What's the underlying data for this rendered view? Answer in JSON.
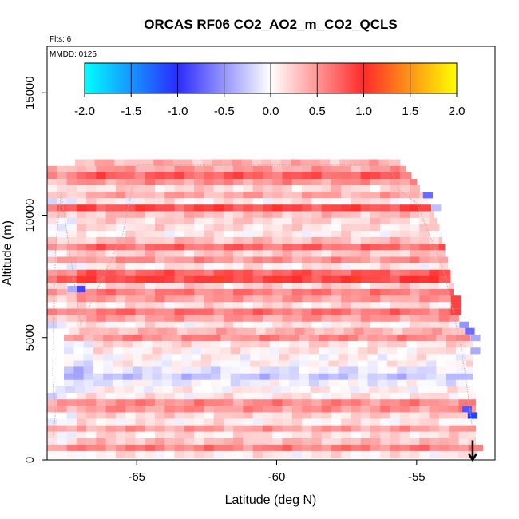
{
  "chart_data": {
    "type": "heatmap",
    "title": "ORCAS RF06 CO2_AO2_m_CO2_QCLS",
    "corner_text": "Flts: 6",
    "inset_label": "MMDD: 0125",
    "xlabel": "Latitude (deg N)",
    "ylabel": "Altitude (m)",
    "xlim": [
      -68.2,
      -52.2
    ],
    "ylim": [
      0,
      16900
    ],
    "x_ticks": [
      -65,
      -60,
      -55
    ],
    "x_tick_labels": [
      "-65",
      "-60",
      "-55"
    ],
    "y_ticks": [
      0,
      5000,
      10000,
      15000
    ],
    "y_tick_labels": [
      "0",
      "5000",
      "10000",
      "15000"
    ],
    "colorbar": {
      "range": [
        -2.0,
        2.0
      ],
      "ticks": [
        -2.0,
        -1.5,
        -1.0,
        -0.5,
        0.0,
        0.5,
        1.0,
        1.5,
        2.0
      ],
      "tick_labels": [
        "-2.0",
        "-1.5",
        "-1.0",
        "-0.5",
        "0.0",
        "0.5",
        "1.0",
        "1.5",
        "2.0"
      ],
      "color_stops": [
        {
          "value": -2.0,
          "color": "#00ffff"
        },
        {
          "value": -1.0,
          "color": "#2b2bff"
        },
        {
          "value": 0.0,
          "color": "#ffffff"
        },
        {
          "value": 1.0,
          "color": "#ff2b2b"
        },
        {
          "value": 2.0,
          "color": "#ffff00"
        }
      ]
    },
    "cell_width_deg": 0.35,
    "rows": [
      {
        "alt": 12150,
        "lat_min": -67.2,
        "lat_max": -55.6,
        "value": 0.35
      },
      {
        "alt": 11880,
        "lat_min": -68.2,
        "lat_max": -55.4,
        "value": 0.45
      },
      {
        "alt": 11620,
        "lat_min": -68.2,
        "lat_max": -55.2,
        "value": 0.75
      },
      {
        "alt": 11350,
        "lat_min": -68.2,
        "lat_max": -55.0,
        "value": 0.5
      },
      {
        "alt": 11090,
        "lat_min": -68.2,
        "lat_max": -54.9,
        "value": 0.2
      },
      {
        "alt": 10820,
        "lat_min": -68.2,
        "lat_max": -54.8,
        "value": 0.4
      },
      {
        "alt": 10560,
        "lat_min": -68.2,
        "lat_max": -54.6,
        "value": 0.1
      },
      {
        "alt": 10300,
        "lat_min": -68.2,
        "lat_max": -54.5,
        "value": 0.85
      },
      {
        "alt": 10030,
        "lat_min": -68.2,
        "lat_max": -54.4,
        "value": 0.3
      },
      {
        "alt": 9760,
        "lat_min": -68.2,
        "lat_max": -54.3,
        "value": 0.2
      },
      {
        "alt": 9500,
        "lat_min": -68.2,
        "lat_max": -54.2,
        "value": 0.15
      },
      {
        "alt": 9230,
        "lat_min": -68.2,
        "lat_max": -54.1,
        "value": 0.1
      },
      {
        "alt": 8970,
        "lat_min": -68.2,
        "lat_max": -54.1,
        "value": 0.3
      },
      {
        "alt": 8700,
        "lat_min": -68.2,
        "lat_max": -54.0,
        "value": 0.7
      },
      {
        "alt": 8440,
        "lat_min": -68.2,
        "lat_max": -54.0,
        "value": 0.25
      },
      {
        "alt": 8170,
        "lat_min": -68.2,
        "lat_max": -53.9,
        "value": 0.5
      },
      {
        "alt": 7910,
        "lat_min": -68.2,
        "lat_max": -53.9,
        "value": 0.1
      },
      {
        "alt": 7640,
        "lat_min": -68.2,
        "lat_max": -53.8,
        "value": 0.75
      },
      {
        "alt": 7380,
        "lat_min": -68.2,
        "lat_max": -53.8,
        "value": 0.9
      },
      {
        "alt": 7110,
        "lat_min": -68.2,
        "lat_max": -53.7,
        "value": 0.2
      },
      {
        "alt": 6850,
        "lat_min": -68.2,
        "lat_max": -53.7,
        "value": 0.6
      },
      {
        "alt": 6580,
        "lat_min": -68.2,
        "lat_max": -53.6,
        "value": 0.45
      },
      {
        "alt": 6320,
        "lat_min": -68.2,
        "lat_max": -53.6,
        "value": 0.15
      },
      {
        "alt": 6050,
        "lat_min": -68.2,
        "lat_max": -53.5,
        "value": 0.65
      },
      {
        "alt": 5790,
        "lat_min": -68.2,
        "lat_max": -53.5,
        "value": 0.45
      },
      {
        "alt": 5520,
        "lat_min": -68.2,
        "lat_max": -53.3,
        "value": 0.1
      },
      {
        "alt": 5260,
        "lat_min": -67.4,
        "lat_max": -53.2,
        "value": 0.35
      },
      {
        "alt": 4990,
        "lat_min": -67.6,
        "lat_max": -53.1,
        "value": 0.55
      },
      {
        "alt": 4730,
        "lat_min": -67.6,
        "lat_max": -53.0,
        "value": 0.15
      },
      {
        "alt": 4460,
        "lat_min": -67.6,
        "lat_max": -53.0,
        "value": 0.1
      },
      {
        "alt": 4200,
        "lat_min": -67.6,
        "lat_max": -53.0,
        "value": 0.05
      },
      {
        "alt": 3930,
        "lat_min": -67.6,
        "lat_max": -53.0,
        "value": 0.05
      },
      {
        "alt": 3670,
        "lat_min": -67.6,
        "lat_max": -53.0,
        "value": -0.1
      },
      {
        "alt": 3400,
        "lat_min": -67.6,
        "lat_max": -53.0,
        "value": -0.25
      },
      {
        "alt": 3140,
        "lat_min": -67.6,
        "lat_max": -53.0,
        "value": -0.05
      },
      {
        "alt": 2870,
        "lat_min": -67.9,
        "lat_max": -53.0,
        "value": 0.05
      },
      {
        "alt": 2610,
        "lat_min": -68.2,
        "lat_max": -52.9,
        "value": 0.1
      },
      {
        "alt": 2340,
        "lat_min": -68.2,
        "lat_max": -52.9,
        "value": 0.55
      },
      {
        "alt": 2080,
        "lat_min": -68.2,
        "lat_max": -52.9,
        "value": 0.5
      },
      {
        "alt": 1810,
        "lat_min": -68.2,
        "lat_max": -52.9,
        "value": 0.2
      },
      {
        "alt": 1550,
        "lat_min": -68.2,
        "lat_max": -52.9,
        "value": 0.1
      },
      {
        "alt": 1280,
        "lat_min": -68.2,
        "lat_max": -52.9,
        "value": 0.45
      },
      {
        "alt": 1020,
        "lat_min": -68.2,
        "lat_max": -52.9,
        "value": 0.15
      },
      {
        "alt": 750,
        "lat_min": -68.2,
        "lat_max": -52.9,
        "value": 0.3
      },
      {
        "alt": 490,
        "lat_min": -68.2,
        "lat_max": -52.9,
        "value": 0.6
      },
      {
        "alt": 230,
        "lat_min": -68.2,
        "lat_max": -52.9,
        "value": 0.1
      }
    ],
    "anomalies": [
      {
        "lat": -67.0,
        "alt": 6980,
        "value": -0.9
      },
      {
        "lat": -67.3,
        "alt": 6980,
        "value": -0.4
      },
      {
        "lat": -54.6,
        "alt": 10820,
        "value": -0.7
      },
      {
        "lat": -54.3,
        "alt": 10300,
        "value": -0.3
      },
      {
        "lat": -53.3,
        "alt": 5520,
        "value": -0.5
      },
      {
        "lat": -53.1,
        "alt": 5260,
        "value": -0.7
      },
      {
        "lat": -52.9,
        "alt": 4990,
        "value": -0.4
      },
      {
        "lat": -52.9,
        "alt": 4460,
        "value": -0.4
      },
      {
        "lat": -53.2,
        "alt": 2080,
        "value": -0.8
      },
      {
        "lat": -53.0,
        "alt": 1810,
        "value": -1.1
      },
      {
        "lat": -52.8,
        "alt": 490,
        "value": 0.6
      },
      {
        "lat": -53.6,
        "alt": 6580,
        "value": 0.9
      },
      {
        "lat": -53.6,
        "alt": 6320,
        "value": 0.9
      },
      {
        "lat": -53.6,
        "alt": 6050,
        "value": 0.9
      }
    ],
    "flight_track": [
      [
        -68.0,
        600
      ],
      [
        -67.9,
        2000
      ],
      [
        -68.0,
        3600
      ],
      [
        -67.9,
        8700
      ],
      [
        -67.7,
        10900
      ],
      [
        -67.0,
        5500
      ],
      [
        -65.5,
        9200
      ],
      [
        -65.0,
        12050
      ],
      [
        -56.0,
        12050
      ],
      [
        -55.6,
        11000
      ],
      [
        -55.0,
        10500
      ],
      [
        -54.4,
        8800
      ],
      [
        -54.0,
        7600
      ],
      [
        -53.6,
        5600
      ],
      [
        -53.4,
        4500
      ],
      [
        -53.2,
        3000
      ],
      [
        -53.0,
        1200
      ]
    ],
    "arrow": {
      "lat": -53.0,
      "alt_from": 800,
      "alt_to": 0
    }
  }
}
